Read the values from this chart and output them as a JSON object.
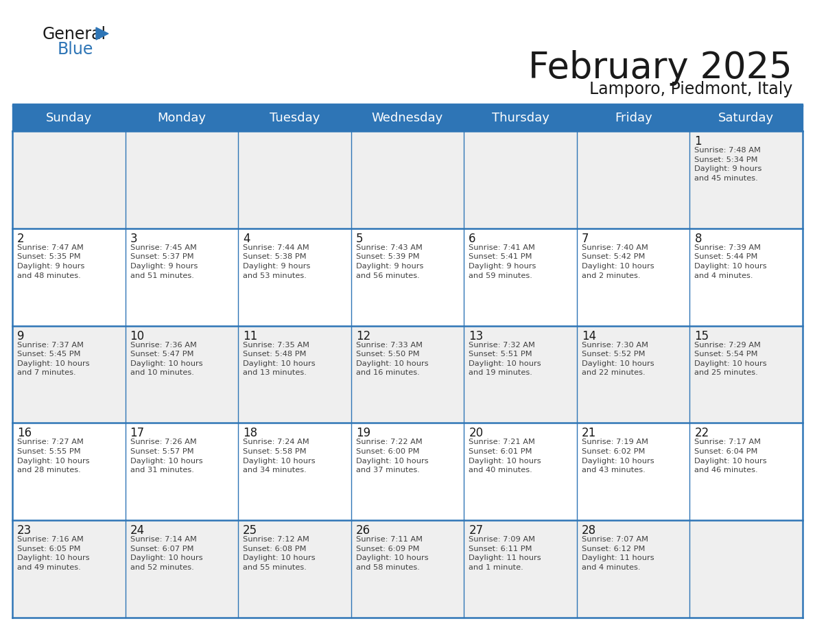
{
  "title": "February 2025",
  "subtitle": "Lamporo, Piedmont, Italy",
  "header_bg_color": "#2E75B6",
  "header_text_color": "#FFFFFF",
  "cell_bg_white": "#FFFFFF",
  "cell_bg_gray": "#EFEFEF",
  "border_color": "#2E75B6",
  "day_headers": [
    "Sunday",
    "Monday",
    "Tuesday",
    "Wednesday",
    "Thursday",
    "Friday",
    "Saturday"
  ],
  "title_color": "#1A1A1A",
  "subtitle_color": "#1A1A1A",
  "day_number_color": "#1A1A1A",
  "cell_text_color": "#404040",
  "logo_text_color": "#1A1A1A",
  "logo_blue_color": "#2E75B6",
  "weeks": [
    [
      {
        "day": "",
        "sunrise": "",
        "sunset": "",
        "daylight": ""
      },
      {
        "day": "",
        "sunrise": "",
        "sunset": "",
        "daylight": ""
      },
      {
        "day": "",
        "sunrise": "",
        "sunset": "",
        "daylight": ""
      },
      {
        "day": "",
        "sunrise": "",
        "sunset": "",
        "daylight": ""
      },
      {
        "day": "",
        "sunrise": "",
        "sunset": "",
        "daylight": ""
      },
      {
        "day": "",
        "sunrise": "",
        "sunset": "",
        "daylight": ""
      },
      {
        "day": "1",
        "sunrise": "7:48 AM",
        "sunset": "5:34 PM",
        "daylight": "9 hours\nand 45 minutes."
      }
    ],
    [
      {
        "day": "2",
        "sunrise": "7:47 AM",
        "sunset": "5:35 PM",
        "daylight": "9 hours\nand 48 minutes."
      },
      {
        "day": "3",
        "sunrise": "7:45 AM",
        "sunset": "5:37 PM",
        "daylight": "9 hours\nand 51 minutes."
      },
      {
        "day": "4",
        "sunrise": "7:44 AM",
        "sunset": "5:38 PM",
        "daylight": "9 hours\nand 53 minutes."
      },
      {
        "day": "5",
        "sunrise": "7:43 AM",
        "sunset": "5:39 PM",
        "daylight": "9 hours\nand 56 minutes."
      },
      {
        "day": "6",
        "sunrise": "7:41 AM",
        "sunset": "5:41 PM",
        "daylight": "9 hours\nand 59 minutes."
      },
      {
        "day": "7",
        "sunrise": "7:40 AM",
        "sunset": "5:42 PM",
        "daylight": "10 hours\nand 2 minutes."
      },
      {
        "day": "8",
        "sunrise": "7:39 AM",
        "sunset": "5:44 PM",
        "daylight": "10 hours\nand 4 minutes."
      }
    ],
    [
      {
        "day": "9",
        "sunrise": "7:37 AM",
        "sunset": "5:45 PM",
        "daylight": "10 hours\nand 7 minutes."
      },
      {
        "day": "10",
        "sunrise": "7:36 AM",
        "sunset": "5:47 PM",
        "daylight": "10 hours\nand 10 minutes."
      },
      {
        "day": "11",
        "sunrise": "7:35 AM",
        "sunset": "5:48 PM",
        "daylight": "10 hours\nand 13 minutes."
      },
      {
        "day": "12",
        "sunrise": "7:33 AM",
        "sunset": "5:50 PM",
        "daylight": "10 hours\nand 16 minutes."
      },
      {
        "day": "13",
        "sunrise": "7:32 AM",
        "sunset": "5:51 PM",
        "daylight": "10 hours\nand 19 minutes."
      },
      {
        "day": "14",
        "sunrise": "7:30 AM",
        "sunset": "5:52 PM",
        "daylight": "10 hours\nand 22 minutes."
      },
      {
        "day": "15",
        "sunrise": "7:29 AM",
        "sunset": "5:54 PM",
        "daylight": "10 hours\nand 25 minutes."
      }
    ],
    [
      {
        "day": "16",
        "sunrise": "7:27 AM",
        "sunset": "5:55 PM",
        "daylight": "10 hours\nand 28 minutes."
      },
      {
        "day": "17",
        "sunrise": "7:26 AM",
        "sunset": "5:57 PM",
        "daylight": "10 hours\nand 31 minutes."
      },
      {
        "day": "18",
        "sunrise": "7:24 AM",
        "sunset": "5:58 PM",
        "daylight": "10 hours\nand 34 minutes."
      },
      {
        "day": "19",
        "sunrise": "7:22 AM",
        "sunset": "6:00 PM",
        "daylight": "10 hours\nand 37 minutes."
      },
      {
        "day": "20",
        "sunrise": "7:21 AM",
        "sunset": "6:01 PM",
        "daylight": "10 hours\nand 40 minutes."
      },
      {
        "day": "21",
        "sunrise": "7:19 AM",
        "sunset": "6:02 PM",
        "daylight": "10 hours\nand 43 minutes."
      },
      {
        "day": "22",
        "sunrise": "7:17 AM",
        "sunset": "6:04 PM",
        "daylight": "10 hours\nand 46 minutes."
      }
    ],
    [
      {
        "day": "23",
        "sunrise": "7:16 AM",
        "sunset": "6:05 PM",
        "daylight": "10 hours\nand 49 minutes."
      },
      {
        "day": "24",
        "sunrise": "7:14 AM",
        "sunset": "6:07 PM",
        "daylight": "10 hours\nand 52 minutes."
      },
      {
        "day": "25",
        "sunrise": "7:12 AM",
        "sunset": "6:08 PM",
        "daylight": "10 hours\nand 55 minutes."
      },
      {
        "day": "26",
        "sunrise": "7:11 AM",
        "sunset": "6:09 PM",
        "daylight": "10 hours\nand 58 minutes."
      },
      {
        "day": "27",
        "sunrise": "7:09 AM",
        "sunset": "6:11 PM",
        "daylight": "11 hours\nand 1 minute."
      },
      {
        "day": "28",
        "sunrise": "7:07 AM",
        "sunset": "6:12 PM",
        "daylight": "11 hours\nand 4 minutes."
      },
      {
        "day": "",
        "sunrise": "",
        "sunset": "",
        "daylight": ""
      }
    ]
  ]
}
